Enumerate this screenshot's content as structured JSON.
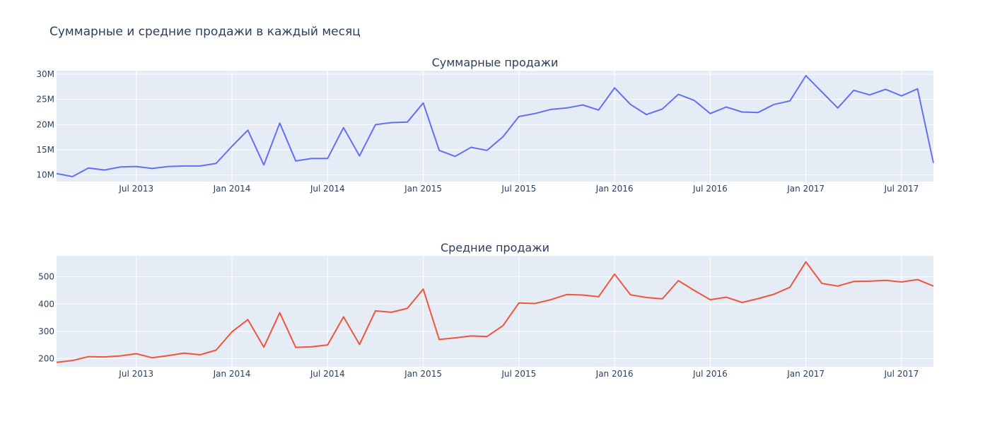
{
  "title": "Суммарные и средние продажи в каждый месяц",
  "colors": {
    "plot_bg": "#e5ecf6",
    "grid": "#ffffff",
    "text": "#2a3f5f",
    "sum_line": "#636efa",
    "avg_line": "#ef553b"
  },
  "chart_data": [
    {
      "type": "line",
      "title": "Суммарные продажи",
      "x_start": "2013-02",
      "x_end": "2017-09",
      "xticks": [
        {
          "date": "2013-07",
          "label": "Jul 2013"
        },
        {
          "date": "2014-01",
          "label": "Jan 2014"
        },
        {
          "date": "2014-07",
          "label": "Jul 2014"
        },
        {
          "date": "2015-01",
          "label": "Jan 2015"
        },
        {
          "date": "2015-07",
          "label": "Jul 2015"
        },
        {
          "date": "2016-01",
          "label": "Jan 2016"
        },
        {
          "date": "2016-07",
          "label": "Jul 2016"
        },
        {
          "date": "2017-01",
          "label": "Jan 2017"
        },
        {
          "date": "2017-07",
          "label": "Jul 2017"
        }
      ],
      "ylim": [
        8700000,
        30700000
      ],
      "yticks": [
        {
          "value": 10000000,
          "label": "10M"
        },
        {
          "value": 15000000,
          "label": "15M"
        },
        {
          "value": 20000000,
          "label": "20M"
        },
        {
          "value": 25000000,
          "label": "25M"
        },
        {
          "value": 30000000,
          "label": "30M"
        }
      ],
      "grid": true,
      "series": [
        {
          "color": "#636efa",
          "x": [
            "2013-02",
            "2013-03",
            "2013-04",
            "2013-05",
            "2013-06",
            "2013-07",
            "2013-08",
            "2013-09",
            "2013-10",
            "2013-11",
            "2013-12",
            "2014-01",
            "2014-02",
            "2014-03",
            "2014-04",
            "2014-05",
            "2014-06",
            "2014-07",
            "2014-08",
            "2014-09",
            "2014-10",
            "2014-11",
            "2014-12",
            "2015-01",
            "2015-02",
            "2015-03",
            "2015-04",
            "2015-05",
            "2015-06",
            "2015-07",
            "2015-08",
            "2015-09",
            "2015-10",
            "2015-11",
            "2015-12",
            "2016-01",
            "2016-02",
            "2016-03",
            "2016-04",
            "2016-05",
            "2016-06",
            "2016-07",
            "2016-08",
            "2016-09",
            "2016-10",
            "2016-11",
            "2016-12",
            "2017-01",
            "2017-02",
            "2017-03",
            "2017-04",
            "2017-05",
            "2017-06",
            "2017-07",
            "2017-08",
            "2017-09"
          ],
          "y": [
            10300000,
            9700000,
            11400000,
            11000000,
            11600000,
            11700000,
            11300000,
            11700000,
            11800000,
            11800000,
            12300000,
            15700000,
            18900000,
            12000000,
            20300000,
            12800000,
            13300000,
            13300000,
            19400000,
            13800000,
            20000000,
            20400000,
            20500000,
            24300000,
            14900000,
            13700000,
            15500000,
            14900000,
            17600000,
            21600000,
            22200000,
            23000000,
            23300000,
            23900000,
            22900000,
            27300000,
            24000000,
            22000000,
            23100000,
            26000000,
            24800000,
            22200000,
            23500000,
            22500000,
            22400000,
            24000000,
            24700000,
            29700000,
            26500000,
            23300000,
            26800000,
            25900000,
            27000000,
            25700000,
            27100000,
            12400000
          ]
        }
      ]
    },
    {
      "type": "line",
      "title": "Средние продажи",
      "x_start": "2013-02",
      "x_end": "2017-09",
      "xticks": [
        {
          "date": "2013-07",
          "label": "Jul 2013"
        },
        {
          "date": "2014-01",
          "label": "Jan 2014"
        },
        {
          "date": "2014-07",
          "label": "Jul 2014"
        },
        {
          "date": "2015-01",
          "label": "Jan 2015"
        },
        {
          "date": "2015-07",
          "label": "Jul 2015"
        },
        {
          "date": "2016-01",
          "label": "Jan 2016"
        },
        {
          "date": "2016-07",
          "label": "Jul 2016"
        },
        {
          "date": "2017-01",
          "label": "Jan 2017"
        },
        {
          "date": "2017-07",
          "label": "Jul 2017"
        }
      ],
      "ylim": [
        170,
        577
      ],
      "yticks": [
        {
          "value": 200,
          "label": "200"
        },
        {
          "value": 300,
          "label": "300"
        },
        {
          "value": 400,
          "label": "400"
        },
        {
          "value": 500,
          "label": "500"
        }
      ],
      "grid": true,
      "series": [
        {
          "color": "#ef553b",
          "x": [
            "2013-02",
            "2013-03",
            "2013-04",
            "2013-05",
            "2013-06",
            "2013-07",
            "2013-08",
            "2013-09",
            "2013-10",
            "2013-11",
            "2013-12",
            "2014-01",
            "2014-02",
            "2014-03",
            "2014-04",
            "2014-05",
            "2014-06",
            "2014-07",
            "2014-08",
            "2014-09",
            "2014-10",
            "2014-11",
            "2014-12",
            "2015-01",
            "2015-02",
            "2015-03",
            "2015-04",
            "2015-05",
            "2015-06",
            "2015-07",
            "2015-08",
            "2015-09",
            "2015-10",
            "2015-11",
            "2015-12",
            "2016-01",
            "2016-02",
            "2016-03",
            "2016-04",
            "2016-05",
            "2016-06",
            "2016-07",
            "2016-08",
            "2016-09",
            "2016-10",
            "2016-11",
            "2016-12",
            "2017-01",
            "2017-02",
            "2017-03",
            "2017-04",
            "2017-05",
            "2017-06",
            "2017-07",
            "2017-08",
            "2017-09"
          ],
          "y": [
            186,
            193,
            207,
            206,
            210,
            218,
            203,
            211,
            220,
            214,
            231,
            298,
            343,
            242,
            368,
            241,
            243,
            250,
            353,
            252,
            375,
            370,
            384,
            455,
            270,
            276,
            283,
            281,
            321,
            404,
            402,
            416,
            435,
            433,
            427,
            510,
            434,
            424,
            419,
            486,
            450,
            416,
            425,
            406,
            420,
            436,
            462,
            555,
            476,
            466,
            483,
            484,
            487,
            481,
            490,
            466
          ]
        }
      ]
    }
  ]
}
